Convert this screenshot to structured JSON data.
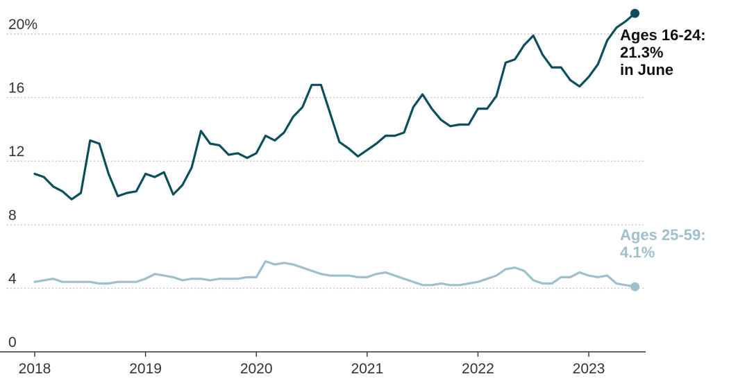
{
  "chart_data": {
    "type": "line",
    "x_start": "2018-01",
    "x_frequency": "monthly",
    "x_tick_labels": [
      "2018",
      "2019",
      "2020",
      "2021",
      "2022",
      "2023"
    ],
    "y_tick_labels": [
      "0",
      "4",
      "8",
      "12",
      "16",
      "20%"
    ],
    "y_ticks": [
      0,
      4,
      8,
      12,
      16,
      20
    ],
    "ylim": [
      0,
      21.5
    ],
    "grid": "horizontal dotted",
    "series": [
      {
        "name": "Ages 16-24",
        "color": "#0b4f5c",
        "label_lines": [
          "Ages 16-24:",
          "21.3%",
          "in June"
        ],
        "values": [
          11.2,
          11.0,
          10.4,
          10.1,
          9.6,
          10.0,
          13.3,
          13.1,
          11.2,
          9.8,
          10.0,
          10.1,
          11.2,
          11.0,
          11.3,
          9.9,
          10.5,
          11.6,
          13.9,
          13.1,
          13.0,
          12.4,
          12.5,
          12.2,
          12.5,
          13.6,
          13.3,
          13.8,
          14.8,
          15.4,
          16.8,
          16.8,
          15.0,
          13.2,
          12.8,
          12.3,
          12.7,
          13.1,
          13.6,
          13.6,
          13.8,
          15.4,
          16.2,
          15.3,
          14.6,
          14.2,
          14.3,
          14.3,
          15.3,
          15.3,
          16.1,
          18.2,
          18.4,
          19.3,
          19.9,
          18.7,
          17.9,
          17.9,
          17.1,
          16.7,
          17.3,
          18.1,
          19.6,
          20.4,
          20.8,
          21.3
        ]
      },
      {
        "name": "Ages 25-59",
        "color": "#9ec0cd",
        "label_lines": [
          "Ages 25-59:",
          "4.1%"
        ],
        "values": [
          4.4,
          4.5,
          4.6,
          4.4,
          4.4,
          4.4,
          4.4,
          4.3,
          4.3,
          4.4,
          4.4,
          4.4,
          4.6,
          4.9,
          4.8,
          4.7,
          4.5,
          4.6,
          4.6,
          4.5,
          4.6,
          4.6,
          4.6,
          4.7,
          4.7,
          5.7,
          5.5,
          5.6,
          5.5,
          5.3,
          5.1,
          4.9,
          4.8,
          4.8,
          4.8,
          4.7,
          4.7,
          4.9,
          5.0,
          4.8,
          4.6,
          4.4,
          4.2,
          4.2,
          4.3,
          4.2,
          4.2,
          4.3,
          4.4,
          4.6,
          4.8,
          5.2,
          5.3,
          5.1,
          4.5,
          4.3,
          4.3,
          4.7,
          4.7,
          5.0,
          4.8,
          4.7,
          4.8,
          4.3,
          4.2,
          4.1
        ]
      }
    ]
  }
}
